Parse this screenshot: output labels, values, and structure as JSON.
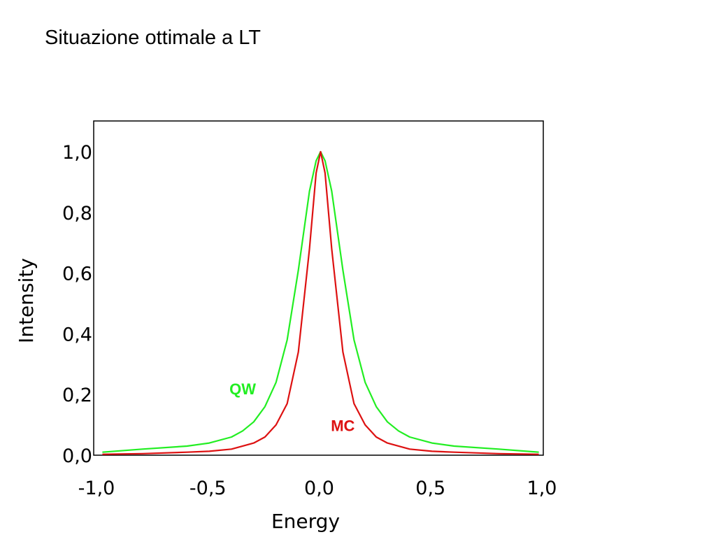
{
  "slide": {
    "title": "Situazione ottimale a LT"
  },
  "chart_data": {
    "type": "line",
    "title": "",
    "xlabel": "Energy",
    "ylabel": "Intensity",
    "xlim": [
      -1.0,
      1.0
    ],
    "ylim": [
      0.0,
      1.1
    ],
    "x_ticks": [
      -1.0,
      -0.5,
      0.0,
      0.5,
      1.0
    ],
    "x_tick_labels": [
      "-1,0",
      "-0,5",
      "0,0",
      "0,5",
      "1,0"
    ],
    "y_ticks": [
      0.0,
      0.2,
      0.4,
      0.6,
      0.8,
      1.0
    ],
    "y_tick_labels": [
      "0,0",
      "0,2",
      "0,4",
      "0,6",
      "0,8",
      "1,0"
    ],
    "grid": false,
    "series": [
      {
        "name": "QW",
        "color": "#22ee22",
        "x": [
          -0.98,
          -0.8,
          -0.6,
          -0.5,
          -0.4,
          -0.35,
          -0.3,
          -0.25,
          -0.2,
          -0.15,
          -0.1,
          -0.05,
          -0.02,
          0.0,
          0.02,
          0.05,
          0.1,
          0.15,
          0.2,
          0.25,
          0.3,
          0.35,
          0.4,
          0.5,
          0.6,
          0.8,
          0.98
        ],
        "y": [
          0.01,
          0.02,
          0.03,
          0.04,
          0.06,
          0.08,
          0.11,
          0.16,
          0.24,
          0.38,
          0.61,
          0.87,
          0.97,
          1.0,
          0.97,
          0.87,
          0.61,
          0.38,
          0.24,
          0.16,
          0.11,
          0.08,
          0.06,
          0.04,
          0.03,
          0.02,
          0.01
        ]
      },
      {
        "name": "MC",
        "color": "#dd1111",
        "x": [
          -0.98,
          -0.8,
          -0.6,
          -0.5,
          -0.4,
          -0.3,
          -0.25,
          -0.2,
          -0.15,
          -0.1,
          -0.05,
          -0.02,
          0.0,
          0.02,
          0.05,
          0.1,
          0.15,
          0.2,
          0.25,
          0.3,
          0.4,
          0.5,
          0.6,
          0.8,
          0.98
        ],
        "y": [
          0.003,
          0.005,
          0.01,
          0.013,
          0.02,
          0.04,
          0.06,
          0.1,
          0.17,
          0.34,
          0.68,
          0.93,
          1.0,
          0.93,
          0.68,
          0.34,
          0.17,
          0.1,
          0.06,
          0.04,
          0.02,
          0.013,
          0.01,
          0.005,
          0.003
        ]
      }
    ],
    "annotations": [
      {
        "text": "QW",
        "x": -0.35,
        "y": 0.2,
        "color": "#22ee22"
      },
      {
        "text": "MC",
        "x": 0.1,
        "y": 0.08,
        "color": "#dd1111"
      }
    ]
  }
}
